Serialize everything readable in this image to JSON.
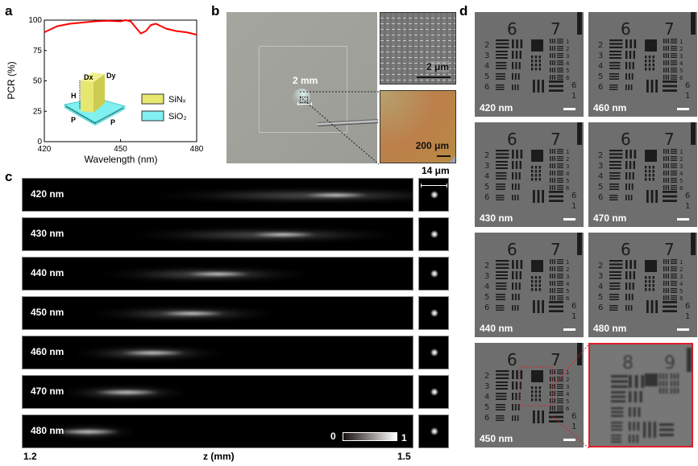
{
  "panels": {
    "a": "a",
    "b": "b",
    "c": "c",
    "d": "d"
  },
  "chart_data": {
    "type": "line",
    "xlabel": "Wavelength (nm)",
    "ylabel": "PCR (%)",
    "xlim": [
      420,
      480
    ],
    "ylim": [
      0,
      100
    ],
    "xticks": [
      "420",
      "450",
      "480"
    ],
    "yticks": [
      "0",
      "25",
      "50",
      "75",
      "100"
    ],
    "x": [
      420,
      425,
      430,
      435,
      440,
      445,
      450,
      452,
      454,
      456,
      458,
      460,
      462,
      464,
      466,
      468,
      472,
      476,
      480
    ],
    "y": [
      90,
      95,
      97,
      98,
      99,
      99.5,
      99,
      100,
      99,
      94,
      89,
      91,
      96,
      97,
      95,
      93,
      91,
      90,
      88
    ],
    "color": "#ff0000",
    "inset": {
      "labels": {
        "dx": "Dx",
        "dy": "Dy",
        "h": "H",
        "p1": "P",
        "p2": "P"
      },
      "legend": [
        {
          "label": "SiNₓ",
          "color": "#e8e870"
        },
        {
          "label": "SiO₂",
          "color": "#80f0f0"
        }
      ]
    }
  },
  "panel_b": {
    "scale_main": "2 mm",
    "scale_sem": "2 μm",
    "scale_optical": "200 μm"
  },
  "panel_c": {
    "rows": [
      {
        "label": "420 nm",
        "focus_z_mm": 1.44
      },
      {
        "label": "430 nm",
        "focus_z_mm": 1.4
      },
      {
        "label": "440 nm",
        "focus_z_mm": 1.35
      },
      {
        "label": "450 nm",
        "focus_z_mm": 1.33
      },
      {
        "label": "460 nm",
        "focus_z_mm": 1.3
      },
      {
        "label": "470 nm",
        "focus_z_mm": 1.28
      },
      {
        "label": "480 nm",
        "focus_z_mm": 1.25
      }
    ],
    "z_range": [
      1.2,
      1.5
    ],
    "xlabel": "z (mm)",
    "xmin_label": "1.2",
    "xmax_label": "1.5",
    "psf_scale": "14 μm",
    "colorbar": {
      "min": "0",
      "max": "1"
    }
  },
  "panel_d": {
    "tiles": [
      "420 nm",
      "460 nm",
      "430 nm",
      "470 nm",
      "440 nm",
      "480 nm",
      "450 nm"
    ],
    "target": {
      "groups": [
        "6",
        "7"
      ],
      "elements_left": [
        "2",
        "3",
        "4",
        "5",
        "6"
      ],
      "elements_right": [
        "1",
        "2",
        "3",
        "4",
        "5",
        "6"
      ],
      "bottom": [
        "6",
        "1"
      ],
      "zoom_groups": [
        "8",
        "9"
      ]
    },
    "zoom_color": "#e0202a"
  }
}
